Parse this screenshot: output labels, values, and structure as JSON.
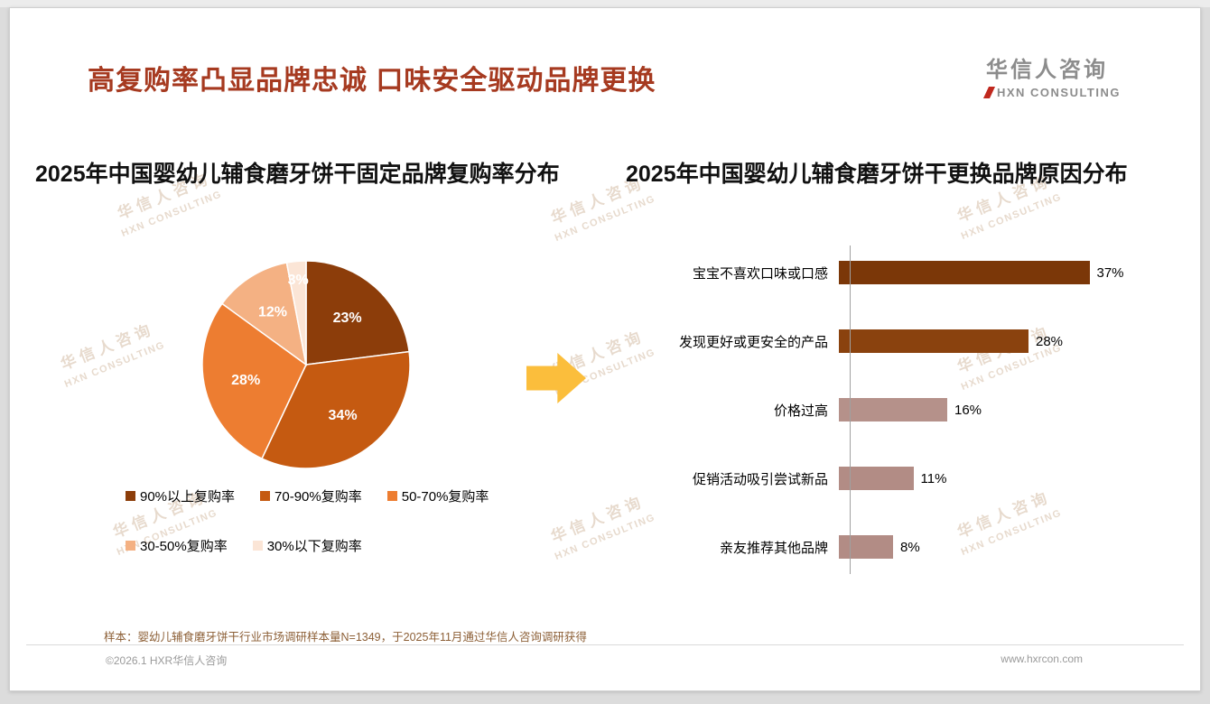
{
  "header": {
    "title": "高复购率凸显品牌忠诚 口味安全驱动品牌更换",
    "logo": {
      "cn": "华信人咨询",
      "en": "HXN CONSULTING"
    }
  },
  "watermark": {
    "cn": "华信人咨询",
    "en": "HXN CONSULTING"
  },
  "left_chart": {
    "title": "2025年中国婴幼儿辅食磨牙饼干固定品牌复购率分布"
  },
  "right_chart": {
    "title": "2025年中国婴幼儿辅食磨牙饼干更换品牌原因分布"
  },
  "chart_data": [
    {
      "type": "pie",
      "title": "2025年中国婴幼儿辅食磨牙饼干固定品牌复购率分布",
      "labels": [
        "90%以上复购率",
        "70-90%复购率",
        "50-70%复购率",
        "30-50%复购率",
        "30%以下复购率"
      ],
      "values": [
        23,
        34,
        28,
        12,
        3
      ],
      "colors": [
        "#8c3d0a",
        "#c55a11",
        "#ed7d31",
        "#f4b183",
        "#fbe5d6"
      ],
      "legend_position": "bottom"
    },
    {
      "type": "bar",
      "orientation": "horizontal",
      "title": "2025年中国婴幼儿辅食磨牙饼干更换品牌原因分布",
      "categories": [
        "宝宝不喜欢口味或口感",
        "发现更好或更安全的产品",
        "价格过高",
        "促销活动吸引尝试新品",
        "亲友推荐其他品牌"
      ],
      "values": [
        37,
        28,
        16,
        11,
        8
      ],
      "colors": [
        "#7b3708",
        "#8a420e",
        "#b5918a",
        "#b28c85",
        "#b28c85"
      ],
      "xlim": [
        0,
        40
      ]
    }
  ],
  "footnote": "样本：婴幼儿辅食磨牙饼干行业市场调研样本量N=1349，于2025年11月通过华信人咨询调研获得",
  "footer": {
    "left": "©2026.1 HXR华信人咨询",
    "right": "www.hxrcon.com"
  }
}
